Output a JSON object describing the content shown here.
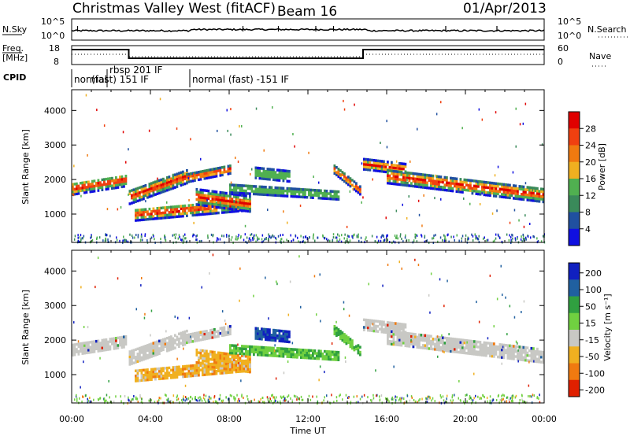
{
  "header": {
    "station": "Christmas Valley West (fitACF)",
    "beam": "Beam 16",
    "date": "01/Apr/2013"
  },
  "top_panels": {
    "nsky_label": "N.Sky",
    "nsky_ticks": [
      "10^5",
      "10^0"
    ],
    "nsearch_label": "N.Search",
    "nsearch_ticks": [
      "10^5",
      "10^0"
    ],
    "freq_label_1": "Freq.",
    "freq_label_2": "[MHz]",
    "freq_ticks": [
      "18",
      "8"
    ],
    "nave_label": "Nave",
    "nave_ticks": [
      "60",
      "0"
    ],
    "cpid_label": "CPID",
    "cpid_segments": [
      {
        "label": "normal",
        "start_h": 0.0,
        "end_h": 1.8
      },
      {
        "label": "rbsp 201 IF",
        "label2": "(fast) 151 IF",
        "start_h": 1.8,
        "end_h": 6.0
      },
      {
        "label": "normal (fast) -151 IF",
        "start_h": 6.0,
        "end_h": 24.0
      }
    ]
  },
  "chart_data": [
    {
      "type": "heatmap",
      "name": "power",
      "ylabel": "Slant Range [km]",
      "yticks": [
        "1000",
        "2000",
        "3000",
        "4000"
      ],
      "ylim": [
        180,
        4600
      ],
      "colorbar_label": "Power [dB]",
      "colorbar_ticks": [
        "4",
        "8",
        "12",
        "16",
        "20",
        "24",
        "28"
      ],
      "clim": [
        0,
        30
      ],
      "colors": [
        "#1010e0",
        "#2050a0",
        "#3a8a5a",
        "#50b050",
        "#f0b020",
        "#f07a10",
        "#f04010",
        "#e00000"
      ]
    },
    {
      "type": "heatmap",
      "name": "velocity",
      "ylabel": "Slant Range [km]",
      "yticks": [
        "1000",
        "2000",
        "3000",
        "4000"
      ],
      "ylim": [
        180,
        4600
      ],
      "colorbar_label": "Velocity [m s⁻¹]",
      "colorbar_ticks": [
        "200",
        "100",
        "50",
        "15",
        "-15",
        "-50",
        "-100",
        "-200"
      ],
      "clim": [
        -250,
        250
      ],
      "colors": [
        "#1020c0",
        "#2060a0",
        "#30a040",
        "#70d040",
        "#c8c8c4",
        "#f0b020",
        "#f07a10",
        "#e02000"
      ]
    }
  ],
  "xaxis": {
    "label": "Time UT",
    "ticks": [
      "00:00",
      "04:00",
      "08:00",
      "12:00",
      "16:00",
      "20:00",
      "00:00"
    ],
    "range_h": [
      0,
      24
    ]
  }
}
